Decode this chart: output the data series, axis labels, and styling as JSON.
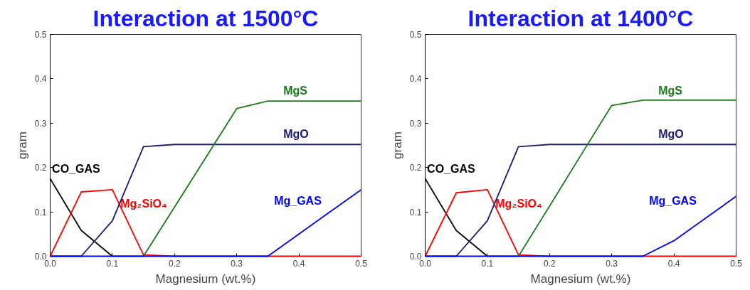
{
  "chart_data": [
    {
      "type": "line",
      "title": "Interaction at 1500°C",
      "xlabel": "Magnesium (wt.%)",
      "ylabel": "gram",
      "x": [
        0,
        0.05,
        0.1,
        0.15,
        0.2,
        0.25,
        0.3,
        0.35,
        0.4,
        0.45,
        0.5
      ],
      "xlim": [
        0,
        0.5
      ],
      "ylim": [
        0,
        0.5
      ],
      "xticks": [
        {
          "value": 0,
          "label": "0.0"
        },
        0.1,
        0.2,
        0.3,
        0.4,
        0.5
      ],
      "yticks": [
        {
          "value": 0,
          "label": "0.0"
        },
        0.1,
        0.2,
        0.3,
        0.4,
        0.5
      ],
      "grid": false,
      "legend": false,
      "marker": "none",
      "line_style": "solid",
      "series": [
        {
          "name": "CO_GAS",
          "color": "#000000",
          "x": [
            0,
            0.05,
            0.1
          ],
          "values": [
            0.175,
            0.058,
            0
          ]
        },
        {
          "name": "Mg₂SiO₄",
          "color": "#ff0000",
          "values": [
            0,
            0.145,
            0.15,
            0.003,
            0,
            0,
            0,
            0,
            0,
            0,
            0
          ]
        },
        {
          "name": "MgO",
          "color": "#1a1a6e",
          "values": [
            0,
            0,
            0.08,
            0.247,
            0.252,
            0.252,
            0.252,
            0.252,
            0.252,
            0.252,
            0.252
          ]
        },
        {
          "name": "MgS",
          "color": "#1a7a1a",
          "x": [
            0.1,
            0.15,
            0.2,
            0.25,
            0.3,
            0.35,
            0.4,
            0.45,
            0.5
          ],
          "values": [
            0,
            0,
            0.111,
            0.222,
            0.333,
            0.35,
            0.35,
            0.35,
            0.35
          ]
        },
        {
          "name": "Mg_GAS",
          "color": "#0000ff",
          "values": [
            0,
            0,
            0,
            0,
            0,
            0,
            0,
            0,
            0.05,
            0.1,
            0.15
          ]
        }
      ]
    },
    {
      "type": "line",
      "title": "Interaction at 1400°C",
      "xlabel": "Magnesium (wt.%)",
      "ylabel": "gram",
      "x": [
        0,
        0.05,
        0.1,
        0.15,
        0.2,
        0.25,
        0.3,
        0.35,
        0.4,
        0.45,
        0.5
      ],
      "xlim": [
        0,
        0.5
      ],
      "ylim": [
        0,
        0.5
      ],
      "xticks": [
        {
          "value": 0,
          "label": "0.0"
        },
        0.1,
        0.2,
        0.3,
        0.4,
        0.5
      ],
      "yticks": [
        {
          "value": 0,
          "label": "0.0"
        },
        0.1,
        0.2,
        0.3,
        0.4,
        0.5
      ],
      "grid": false,
      "legend": false,
      "marker": "none",
      "line_style": "solid",
      "series": [
        {
          "name": "CO_GAS",
          "color": "#000000",
          "x": [
            0,
            0.05,
            0.1
          ],
          "values": [
            0.175,
            0.058,
            0
          ]
        },
        {
          "name": "Mg₂SiO₄",
          "color": "#ff0000",
          "values": [
            0,
            0.143,
            0.15,
            0.003,
            0,
            0,
            0,
            0,
            0,
            0,
            0
          ]
        },
        {
          "name": "MgO",
          "color": "#1a1a6e",
          "values": [
            0,
            0,
            0.08,
            0.247,
            0.252,
            0.252,
            0.252,
            0.252,
            0.252,
            0.252,
            0.252
          ]
        },
        {
          "name": "MgS",
          "color": "#1a7a1a",
          "x": [
            0.1,
            0.15,
            0.2,
            0.25,
            0.3,
            0.35,
            0.4,
            0.45,
            0.5
          ],
          "values": [
            0,
            0,
            0.113,
            0.227,
            0.34,
            0.352,
            0.352,
            0.352,
            0.352
          ]
        },
        {
          "name": "Mg_GAS",
          "color": "#0000ff",
          "values": [
            0,
            0,
            0,
            0,
            0,
            0,
            0,
            0,
            0.035,
            0.085,
            0.135
          ]
        }
      ]
    }
  ]
}
